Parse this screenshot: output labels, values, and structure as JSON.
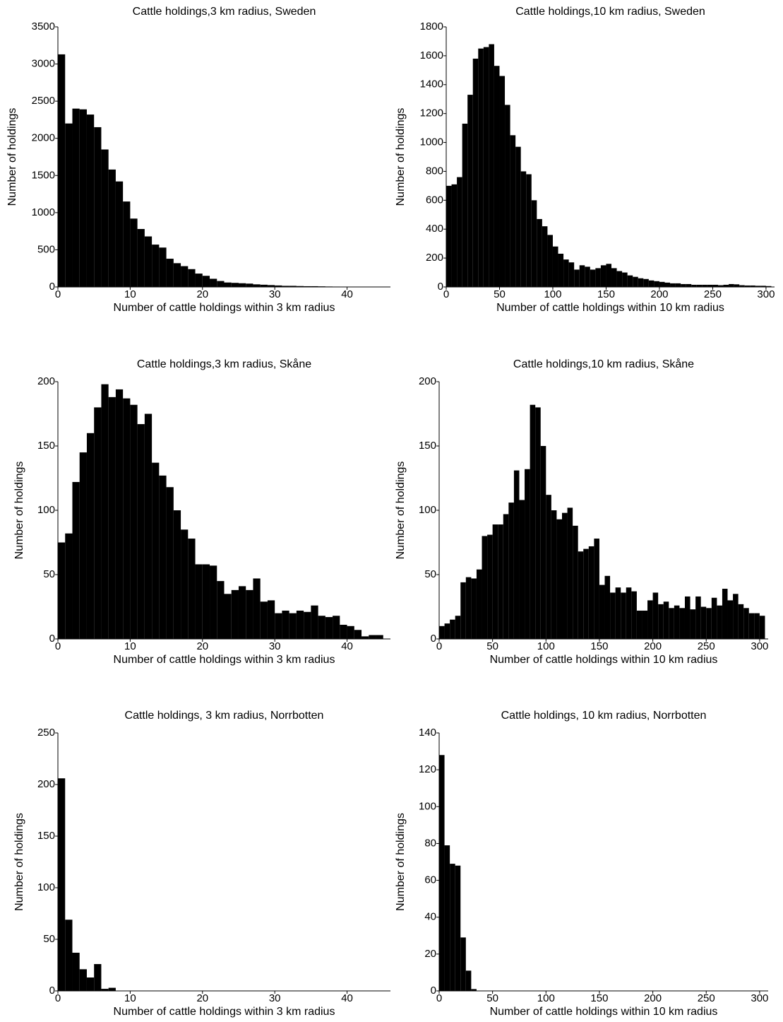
{
  "chart_data": [
    {
      "type": "histogram",
      "title": "Cattle holdings,3 km radius, Sweden",
      "x_label": "Number of cattle holdings within 3 km radius",
      "y_label": "Number of holdings",
      "color": "#000000",
      "bins": [
        0,
        1,
        2,
        3,
        4,
        5,
        6,
        7,
        8,
        9,
        10,
        11,
        12,
        13,
        14,
        15,
        16,
        17,
        18,
        19,
        20,
        21,
        22,
        23,
        24,
        25,
        26,
        27,
        28,
        29,
        30,
        31,
        32,
        33,
        34,
        35,
        36,
        37,
        38,
        39,
        40,
        41,
        42,
        43
      ],
      "counts": [
        3130,
        2200,
        2400,
        2390,
        2320,
        2150,
        1850,
        1580,
        1420,
        1150,
        920,
        780,
        680,
        570,
        530,
        380,
        320,
        280,
        240,
        180,
        150,
        110,
        80,
        60,
        55,
        50,
        45,
        35,
        30,
        25,
        20,
        15,
        15,
        12,
        10,
        10,
        8,
        6,
        5,
        4,
        3,
        2,
        1
      ],
      "xlim": [
        0,
        46
      ],
      "xticks": [
        0,
        10,
        20,
        30,
        40
      ],
      "ylim": [
        0,
        3500
      ],
      "yticks": [
        0,
        500,
        1000,
        1500,
        2000,
        2500,
        3000,
        3500
      ]
    },
    {
      "type": "histogram",
      "title": "Cattle holdings,10 km radius, Sweden",
      "x_label": "Number of cattle holdings within 10 km radius",
      "y_label": "Number of holdings",
      "color": "#000000",
      "bins": [
        0,
        5,
        10,
        15,
        20,
        25,
        30,
        35,
        40,
        45,
        50,
        55,
        60,
        65,
        70,
        75,
        80,
        85,
        90,
        95,
        100,
        105,
        110,
        115,
        120,
        125,
        130,
        135,
        140,
        145,
        150,
        155,
        160,
        165,
        170,
        175,
        180,
        185,
        190,
        195,
        200,
        205,
        210,
        215,
        220,
        225,
        230,
        235,
        240,
        245,
        250,
        255,
        260,
        265,
        270,
        275,
        280,
        285,
        290,
        295,
        300,
        305
      ],
      "counts": [
        700,
        710,
        760,
        1130,
        1330,
        1580,
        1650,
        1660,
        1680,
        1530,
        1460,
        1260,
        1050,
        970,
        800,
        780,
        600,
        470,
        420,
        360,
        280,
        230,
        190,
        170,
        120,
        150,
        140,
        120,
        130,
        150,
        160,
        130,
        110,
        100,
        80,
        70,
        60,
        55,
        45,
        40,
        35,
        30,
        25,
        25,
        20,
        20,
        15,
        15,
        15,
        15,
        15,
        12,
        15,
        20,
        18,
        12,
        10,
        10,
        8,
        8,
        6
      ],
      "xlim": [
        0,
        308
      ],
      "xticks": [
        0,
        50,
        100,
        150,
        200,
        250,
        300
      ],
      "ylim": [
        0,
        1800
      ],
      "yticks": [
        0,
        200,
        400,
        600,
        800,
        1000,
        1200,
        1400,
        1600,
        1800
      ]
    },
    {
      "type": "histogram",
      "title": "Cattle holdings,3 km radius, Skåne",
      "x_label": "Number of cattle holdings within 3 km radius",
      "y_label": "Number of holdings",
      "color": "#000000",
      "bins": [
        0,
        1,
        2,
        3,
        4,
        5,
        6,
        7,
        8,
        9,
        10,
        11,
        12,
        13,
        14,
        15,
        16,
        17,
        18,
        19,
        20,
        21,
        22,
        23,
        24,
        25,
        26,
        27,
        28,
        29,
        30,
        31,
        32,
        33,
        34,
        35,
        36,
        37,
        38,
        39,
        40,
        41,
        42,
        43,
        44,
        45
      ],
      "counts": [
        75,
        82,
        122,
        145,
        160,
        180,
        198,
        188,
        194,
        187,
        182,
        167,
        175,
        137,
        127,
        118,
        100,
        85,
        78,
        58,
        58,
        57,
        45,
        35,
        38,
        41,
        38,
        47,
        29,
        30,
        20,
        22,
        20,
        22,
        21,
        26,
        18,
        17,
        18,
        11,
        10,
        7,
        2,
        3,
        3
      ],
      "xlim": [
        0,
        46
      ],
      "xticks": [
        0,
        10,
        20,
        30,
        40
      ],
      "ylim": [
        0,
        200
      ],
      "yticks": [
        0,
        50,
        100,
        150,
        200
      ]
    },
    {
      "type": "histogram",
      "title": "Cattle holdings,10 km radius, Skåne",
      "x_label": "Number of cattle holdings within 10 km radius",
      "y_label": "Number of holdings",
      "color": "#000000",
      "bins": [
        0,
        5,
        10,
        15,
        20,
        25,
        30,
        35,
        40,
        45,
        50,
        55,
        60,
        65,
        70,
        75,
        80,
        85,
        90,
        95,
        100,
        105,
        110,
        115,
        120,
        125,
        130,
        135,
        140,
        145,
        150,
        155,
        160,
        165,
        170,
        175,
        180,
        185,
        190,
        195,
        200,
        205,
        210,
        215,
        220,
        225,
        230,
        235,
        240,
        245,
        250,
        255,
        260,
        265,
        270,
        275,
        280,
        285,
        290,
        295,
        300,
        305
      ],
      "counts": [
        10,
        12,
        15,
        18,
        44,
        48,
        47,
        54,
        80,
        81,
        89,
        89,
        97,
        106,
        131,
        108,
        132,
        182,
        180,
        150,
        112,
        100,
        93,
        98,
        102,
        88,
        68,
        70,
        72,
        78,
        42,
        49,
        36,
        40,
        36,
        40,
        37,
        22,
        22,
        30,
        36,
        27,
        29,
        24,
        26,
        24,
        33,
        23,
        33,
        25,
        24,
        32,
        26,
        39,
        30,
        35,
        27,
        24,
        20,
        20,
        18
      ],
      "xlim": [
        0,
        308
      ],
      "xticks": [
        0,
        50,
        100,
        150,
        200,
        250,
        300
      ],
      "ylim": [
        0,
        200
      ],
      "yticks": [
        0,
        50,
        100,
        150,
        200
      ]
    },
    {
      "type": "histogram",
      "title": "Cattle holdings, 3 km radius, Norrbotten",
      "x_label": "Number of cattle holdings within 3 km radius",
      "y_label": "Number of holdings",
      "color": "#000000",
      "bins": [
        0,
        1,
        2,
        3,
        4,
        5,
        6,
        7,
        8
      ],
      "counts": [
        206,
        69,
        37,
        21,
        13,
        26,
        2,
        3
      ],
      "xlim": [
        0,
        46
      ],
      "xticks": [
        0,
        10,
        20,
        30,
        40
      ],
      "ylim": [
        0,
        250
      ],
      "yticks": [
        0,
        50,
        100,
        150,
        200,
        250
      ]
    },
    {
      "type": "histogram",
      "title": "Cattle holdings, 10 km radius, Norrbotten",
      "x_label": "Number of cattle holdings within 10 km radius",
      "y_label": "Number of holdings",
      "color": "#000000",
      "bins": [
        0,
        5,
        10,
        15,
        20,
        25,
        30,
        35
      ],
      "counts": [
        128,
        79,
        69,
        68,
        29,
        11,
        1
      ],
      "xlim": [
        0,
        308
      ],
      "xticks": [
        0,
        50,
        100,
        150,
        200,
        250,
        300
      ],
      "ylim": [
        0,
        140
      ],
      "yticks": [
        0,
        20,
        40,
        60,
        80,
        100,
        120,
        140
      ]
    }
  ]
}
